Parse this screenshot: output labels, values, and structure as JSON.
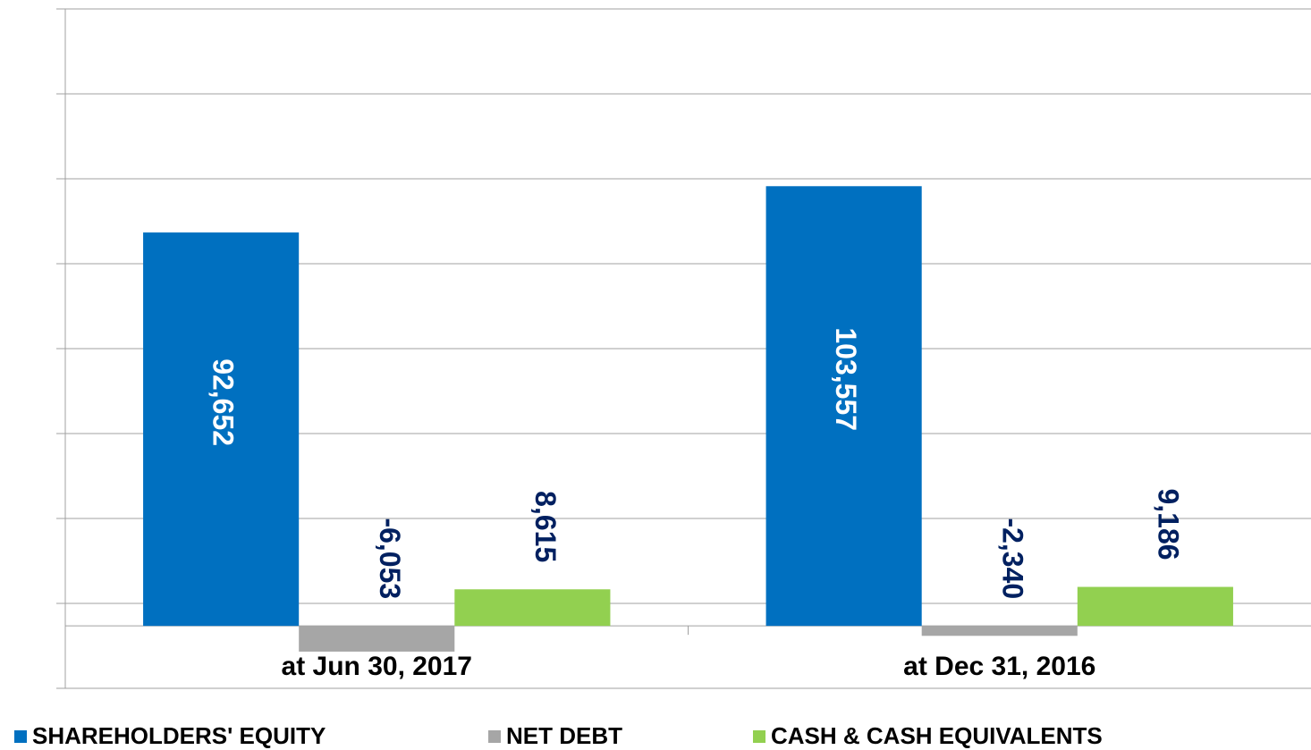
{
  "chart_data": {
    "type": "bar",
    "categories": [
      "at Jun 30, 2017",
      "at Dec 31, 2016"
    ],
    "series": [
      {
        "name": "SHAREHOLDERS' EQUITY",
        "color": "#0070c0",
        "values": [
          92652,
          103557
        ],
        "value_labels": [
          "92,652",
          "103,557"
        ]
      },
      {
        "name": "NET DEBT",
        "color": "#a6a6a6",
        "values": [
          -6053,
          -2340
        ],
        "value_labels": [
          "-6,053",
          "-2,340"
        ]
      },
      {
        "name": "CASH & CASH EQUIVALENTS",
        "color": "#92d050",
        "values": [
          8615,
          9186
        ],
        "value_labels": [
          "8,615",
          "9,186"
        ]
      }
    ],
    "ylim": [
      -14700,
      145300
    ],
    "yticks": [
      -14700,
      5300,
      25300,
      45300,
      65300,
      85300,
      105300,
      125300,
      145300
    ],
    "grid": true,
    "legend": "bottom"
  }
}
